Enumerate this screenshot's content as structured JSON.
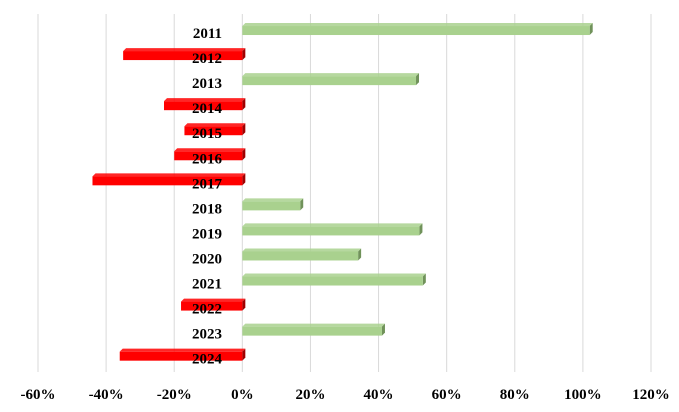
{
  "chart_data": {
    "type": "bar",
    "orientation": "horizontal",
    "title": "",
    "xlabel": "",
    "ylabel": "",
    "categories": [
      "2011",
      "2012",
      "2013",
      "2014",
      "2015",
      "2016",
      "2017",
      "2018",
      "2019",
      "2020",
      "2021",
      "2022",
      "2023",
      "2024"
    ],
    "values": [
      102,
      -35,
      51,
      -23,
      -17,
      -20,
      -44,
      17,
      52,
      34,
      53,
      -18,
      41,
      -36
    ],
    "value_unit": "%",
    "xlim": [
      -60,
      120
    ],
    "x_ticks": [
      "-60%",
      "-40%",
      "-20%",
      "0%",
      "20%",
      "40%",
      "60%",
      "80%",
      "100%",
      "120%"
    ],
    "grid": "vertical",
    "legend": "none",
    "colors": {
      "positive_fill": "#a9d18e",
      "positive_edge": "#70925a",
      "negative_fill": "#ff0000",
      "negative_edge": "#a00000",
      "grid": "#d9d9d9"
    }
  }
}
